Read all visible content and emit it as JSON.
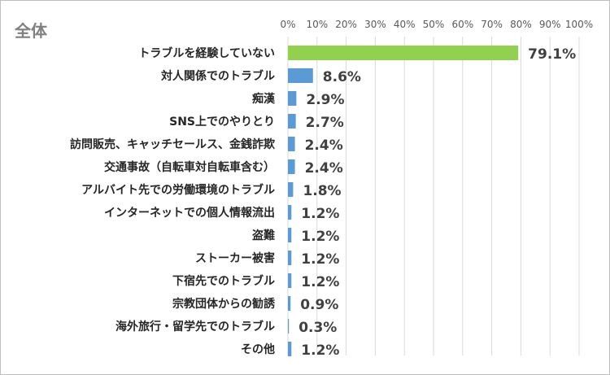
{
  "chart_data": {
    "type": "bar",
    "orientation": "horizontal",
    "title": "全体",
    "categories": [
      "トラブルを経験していない",
      "対人関係でのトラブル",
      "痴漢",
      "SNS上でのやりとり",
      "訪問販売、キャッチセールス、金銭詐欺",
      "交通事故（自転車対自転車含む）",
      "アルバイト先での労働環境のトラブル",
      "インターネットでの個人情報流出",
      "盗難",
      "ストーカー被害",
      "下宿先でのトラブル",
      "宗教団体からの勧誘",
      "海外旅行・留学先でのトラブル",
      "その他"
    ],
    "values": [
      79.1,
      8.6,
      2.9,
      2.7,
      2.4,
      2.4,
      1.8,
      1.2,
      1.2,
      1.2,
      1.2,
      0.9,
      0.3,
      1.2
    ],
    "value_labels": [
      "79.1%",
      "8.6%",
      "2.9%",
      "2.7%",
      "2.4%",
      "2.4%",
      "1.8%",
      "1.2%",
      "1.2%",
      "1.2%",
      "1.2%",
      "0.9%",
      "0.3%",
      "1.2%"
    ],
    "xlim": [
      0,
      100
    ],
    "xticks": [
      "0%",
      "10%",
      "20%",
      "30%",
      "40%",
      "50%",
      "60%",
      "70%",
      "80%",
      "90%",
      "100%"
    ],
    "grid": true,
    "axis_position": "top",
    "colors": {
      "highlight": "#92d050",
      "default": "#5b9bd5",
      "grid": "#d9d9d9"
    }
  }
}
